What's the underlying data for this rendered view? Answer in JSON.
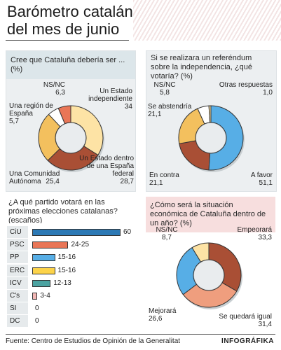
{
  "title": {
    "line1": "Barómetro catalán",
    "line2": "del mes de junio"
  },
  "footer": {
    "source": "Fuente: Centro de Estudios de Opinión de la Generalitat",
    "brand": "INFOGRÁFIKA"
  },
  "colors": {
    "dark_red": "#a94f35",
    "cream": "#fde3a5",
    "orange": "#f3c05e",
    "salmon": "#e97657",
    "blue": "#57aee6",
    "light_salmon": "#ef9e7e",
    "yellow": "#fcd34a",
    "teal": "#4ba3a1",
    "pink_light": "#f3b7b5",
    "navy": "#2c79b5"
  },
  "chart_data": [
    {
      "type": "pie",
      "title": "Cree que Cataluña debería ser ... (%)",
      "slices": [
        {
          "label": "Un Estado independiente",
          "value": 34,
          "value_label": "34",
          "color": "#fde3a5"
        },
        {
          "label": "Un Estado dentro de una España federal",
          "value": 28.7,
          "value_label": "28,7",
          "color": "#a94f35"
        },
        {
          "label": "Una Comunidad Autónoma",
          "value": 25.4,
          "value_label": "25,4",
          "color": "#f3c05e"
        },
        {
          "label": "Una región de España",
          "value": 5.7,
          "value_label": "5,7",
          "color": "#ffffff"
        },
        {
          "label": "NS/NC",
          "value": 6.3,
          "value_label": "6,3",
          "color": "#e97657"
        }
      ]
    },
    {
      "type": "pie",
      "title": "Si se realizara un referéndum sobre la independencia, ¿qué votaría? (%)",
      "slices": [
        {
          "label": "A favor",
          "value": 51.1,
          "value_label": "51,1",
          "color": "#57aee6"
        },
        {
          "label": "En contra",
          "value": 21.1,
          "value_label": "21,1",
          "color": "#a94f35"
        },
        {
          "label": "Se abstendría",
          "value": 21.1,
          "value_label": "21,1",
          "color": "#f3c05e"
        },
        {
          "label": "NS/NC",
          "value": 5.8,
          "value_label": "5,8",
          "color": "#ffffff"
        },
        {
          "label": "Otras respuestas",
          "value": 1.0,
          "value_label": "1,0",
          "color": "#fde3a5"
        }
      ]
    },
    {
      "type": "bar",
      "title": "¿A qué partido votará en las próximas elecciones catalanas? (escaños)",
      "categories": [
        "CiU",
        "PSC",
        "PP",
        "ERC",
        "ICV",
        "C's",
        "SI",
        "DC"
      ],
      "values": [
        60,
        24.5,
        15.5,
        15.5,
        12.5,
        3.5,
        0,
        0
      ],
      "value_labels": [
        "60",
        "24-25",
        "15-16",
        "15-16",
        "12-13",
        "3-4",
        "0",
        "0"
      ],
      "colors": [
        "#2c79b5",
        "#e97657",
        "#57aee6",
        "#fcd34a",
        "#4ba3a1",
        "#f3b7b5",
        "#cccccc",
        "#cccccc"
      ],
      "xlim": [
        0,
        60
      ]
    },
    {
      "type": "pie",
      "title": "¿Cómo será la situación económica de Cataluña dentro de un año? (%)",
      "slices": [
        {
          "label": "Empeorará",
          "value": 33.3,
          "value_label": "33,3",
          "color": "#a94f35"
        },
        {
          "label": "Se quedará igual",
          "value": 31.4,
          "value_label": "31,4",
          "color": "#ef9e7e"
        },
        {
          "label": "Mejorará",
          "value": 26.6,
          "value_label": "26,6",
          "color": "#57aee6"
        },
        {
          "label": "NS/NC",
          "value": 8.7,
          "value_label": "8,7",
          "color": "#fde3a5"
        }
      ]
    }
  ]
}
